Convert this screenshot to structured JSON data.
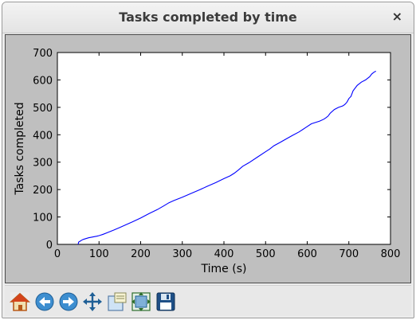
{
  "window": {
    "title": "Tasks completed by time",
    "close_glyph": "×"
  },
  "toolbar": {
    "buttons": [
      {
        "name": "home-button",
        "icon": "home-icon",
        "tooltip": "Reset original view"
      },
      {
        "name": "back-button",
        "icon": "back-arrow-icon",
        "tooltip": "Back to previous view"
      },
      {
        "name": "forward-button",
        "icon": "forward-arrow-icon",
        "tooltip": "Forward to next view"
      },
      {
        "name": "pan-button",
        "icon": "pan-move-icon",
        "tooltip": "Pan axes"
      },
      {
        "name": "zoom-button",
        "icon": "zoom-rect-icon",
        "tooltip": "Zoom to rectangle"
      },
      {
        "name": "subplots-button",
        "icon": "subplots-config-icon",
        "tooltip": "Configure subplots"
      },
      {
        "name": "save-button",
        "icon": "floppy-save-icon",
        "tooltip": "Save the figure"
      }
    ]
  },
  "colors": {
    "line": "#0000ff",
    "figure_bg": "#bfbfbf",
    "axes_bg": "#ffffff"
  },
  "chart_data": {
    "type": "line",
    "title": "",
    "xlabel": "Time (s)",
    "ylabel": "Tasks completed",
    "xlim": [
      0,
      800
    ],
    "ylim": [
      0,
      700
    ],
    "xticks": [
      "0",
      "100",
      "200",
      "300",
      "400",
      "500",
      "600",
      "700",
      "800"
    ],
    "yticks": [
      "0",
      "100",
      "200",
      "300",
      "400",
      "500",
      "600",
      "700"
    ],
    "grid": false,
    "legend": "none",
    "series": [
      {
        "x": [
          50,
          51,
          55,
          58,
          62,
          68,
          75,
          85,
          95,
          100,
          110,
          120,
          135,
          150,
          165,
          180,
          200,
          220,
          240,
          255,
          268,
          280,
          300,
          320,
          340,
          360,
          380,
          400,
          415,
          425,
          435,
          445,
          460,
          480,
          500,
          510,
          520,
          535,
          550,
          565,
          580,
          595,
          610,
          630,
          640,
          645,
          650,
          655,
          665,
          675,
          685,
          690,
          695,
          700,
          705,
          710,
          720,
          730,
          740,
          750,
          755,
          760,
          765
        ],
        "y": [
          0,
          8,
          12,
          15,
          18,
          21,
          24,
          27,
          30,
          32,
          37,
          43,
          52,
          62,
          72,
          82,
          96,
          112,
          127,
          140,
          152,
          160,
          172,
          185,
          198,
          212,
          225,
          240,
          250,
          260,
          272,
          285,
          298,
          318,
          338,
          348,
          360,
          372,
          385,
          398,
          410,
          425,
          440,
          450,
          457,
          462,
          468,
          478,
          492,
          500,
          505,
          510,
          518,
          532,
          540,
          560,
          580,
          592,
          600,
          612,
          622,
          628,
          632
        ]
      }
    ]
  }
}
